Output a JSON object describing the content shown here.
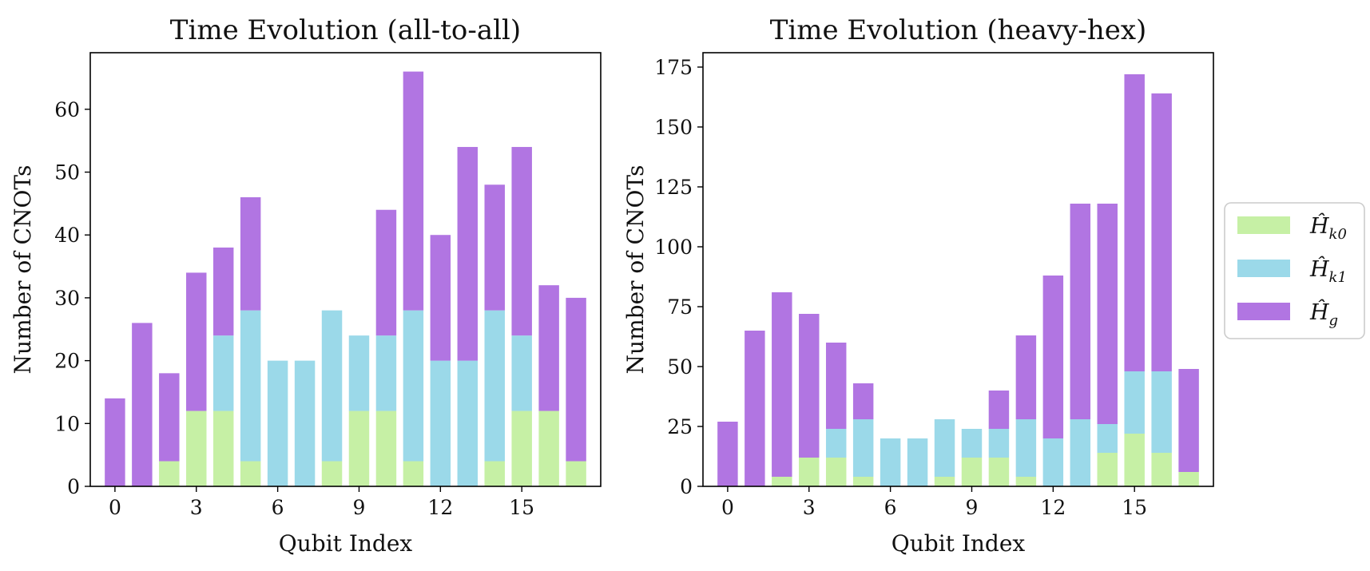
{
  "chart_data": [
    {
      "type": "bar",
      "stacked": true,
      "title": "Time Evolution (all-to-all)",
      "xlabel": "Qubit Index",
      "ylabel": "Number of CNOTs",
      "categories": [
        0,
        1,
        2,
        3,
        4,
        5,
        6,
        7,
        8,
        9,
        10,
        11,
        12,
        13,
        14,
        15,
        16,
        17
      ],
      "xticks": [
        0,
        3,
        6,
        9,
        12,
        15
      ],
      "ylim": [
        0,
        69
      ],
      "yticks": [
        0,
        10,
        20,
        30,
        40,
        50,
        60
      ],
      "series": [
        {
          "name": "H_k0",
          "color": "#c6f0a5",
          "values": [
            0,
            0,
            4,
            12,
            12,
            4,
            0,
            0,
            4,
            12,
            12,
            4,
            0,
            0,
            4,
            12,
            12,
            4
          ]
        },
        {
          "name": "H_k1",
          "color": "#9bd9e9",
          "values": [
            0,
            0,
            0,
            0,
            12,
            24,
            20,
            20,
            24,
            12,
            12,
            24,
            20,
            20,
            24,
            12,
            0,
            0
          ]
        },
        {
          "name": "H_g",
          "color": "#b175e2",
          "values": [
            14,
            26,
            14,
            22,
            14,
            18,
            0,
            0,
            0,
            0,
            20,
            38,
            20,
            34,
            20,
            30,
            20,
            26
          ]
        }
      ]
    },
    {
      "type": "bar",
      "stacked": true,
      "title": "Time Evolution (heavy-hex)",
      "xlabel": "Qubit Index",
      "ylabel": "Number of CNOTs",
      "categories": [
        0,
        1,
        2,
        3,
        4,
        5,
        6,
        7,
        8,
        9,
        10,
        11,
        12,
        13,
        14,
        15,
        16,
        17
      ],
      "xticks": [
        0,
        3,
        6,
        9,
        12,
        15
      ],
      "ylim": [
        0,
        181
      ],
      "yticks": [
        0,
        25,
        50,
        75,
        100,
        125,
        150,
        175
      ],
      "series": [
        {
          "name": "H_k0",
          "color": "#c6f0a5",
          "values": [
            0,
            0,
            4,
            12,
            12,
            4,
            0,
            0,
            4,
            12,
            12,
            4,
            0,
            0,
            14,
            22,
            14,
            6
          ]
        },
        {
          "name": "H_k1",
          "color": "#9bd9e9",
          "values": [
            0,
            0,
            0,
            0,
            12,
            24,
            20,
            20,
            24,
            12,
            12,
            24,
            20,
            28,
            12,
            26,
            34,
            0
          ]
        },
        {
          "name": "H_g",
          "color": "#b175e2",
          "values": [
            27,
            65,
            77,
            60,
            36,
            15,
            0,
            0,
            0,
            0,
            16,
            35,
            68,
            90,
            92,
            124,
            116,
            43
          ]
        }
      ]
    }
  ],
  "legend": {
    "placement": "right",
    "entries": [
      {
        "base": "Ĥ",
        "sub": "k0",
        "color": "#c6f0a5"
      },
      {
        "base": "Ĥ",
        "sub": "k1",
        "color": "#9bd9e9"
      },
      {
        "base": "Ĥ",
        "sub": "g",
        "color": "#b175e2"
      }
    ]
  }
}
